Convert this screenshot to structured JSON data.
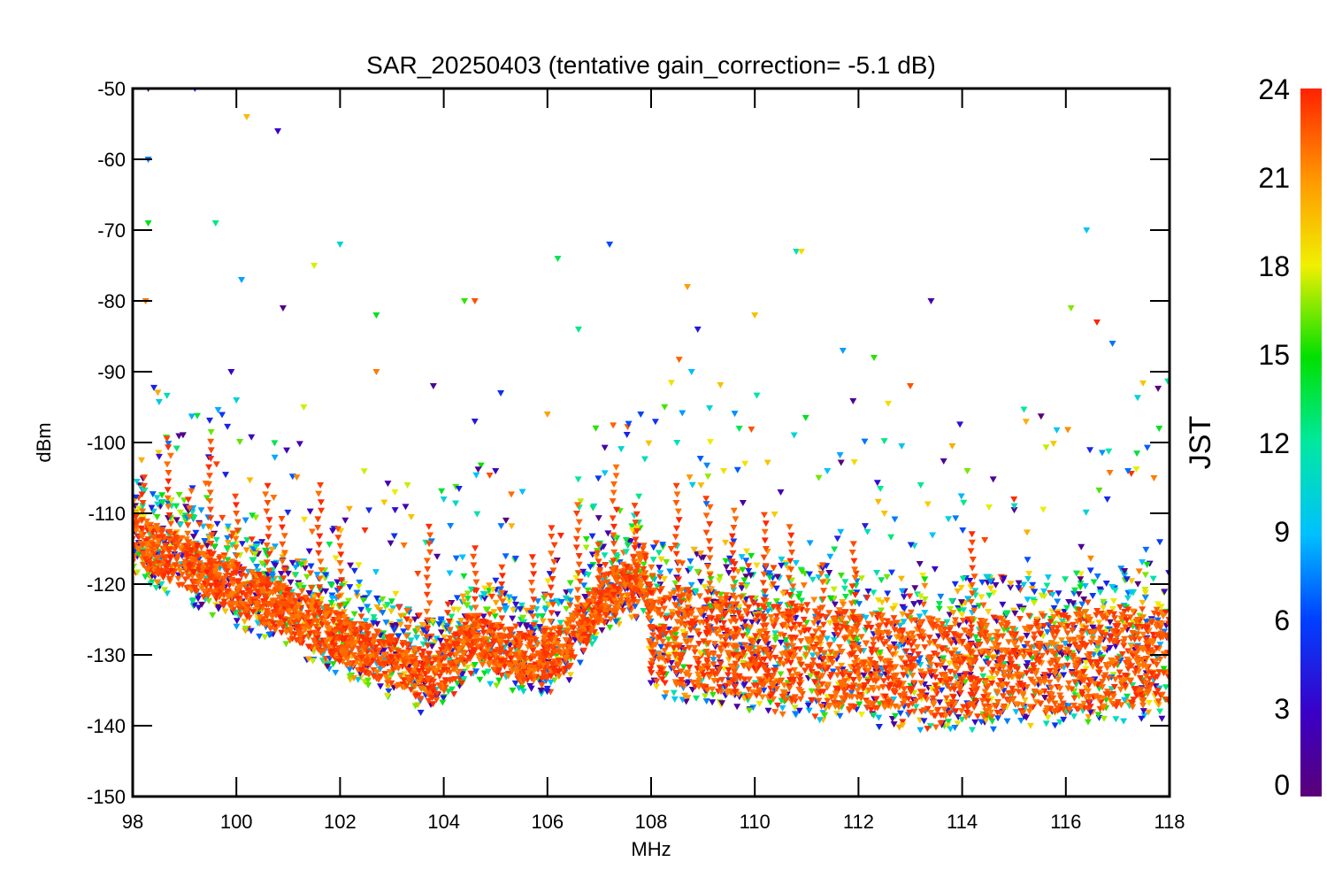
{
  "chart_data": {
    "type": "scatter",
    "title": "SAR_20250403 (tentative gain_correction= -5.1 dB)",
    "xlabel": "MHz",
    "ylabel": "dBm",
    "xlim": [
      98,
      118
    ],
    "ylim": [
      -150,
      -50
    ],
    "xticks": [
      "98",
      "100",
      "102",
      "104",
      "106",
      "108",
      "110",
      "112",
      "114",
      "116",
      "118"
    ],
    "yticks": [
      "-50",
      "-60",
      "-70",
      "-80",
      "-90",
      "-100",
      "-110",
      "-120",
      "-130",
      "-140",
      "-150"
    ],
    "colorbar": {
      "label": "JST",
      "range": [
        0,
        24
      ],
      "ticks": [
        "0",
        "3",
        "6",
        "9",
        "12",
        "15",
        "18",
        "21",
        "24"
      ],
      "colormap": "rainbow (purple → blue → cyan → green → yellow → orange → red)"
    },
    "marker": "small triangle",
    "dominant_color": "#ff3300",
    "noise_floor": {
      "x": [
        98,
        100,
        102,
        103.8,
        104.5,
        105.5,
        106.3,
        107,
        107.9,
        108,
        110,
        112,
        114,
        116,
        118
      ],
      "y": [
        -113,
        -120,
        -127,
        -133,
        -127,
        -130,
        -129,
        -122,
        -118,
        -130,
        -132,
        -134,
        -135,
        -134,
        -133
      ]
    },
    "series": [
      {
        "values": [
          [
            98.3,
            -50
          ],
          [
            98.3,
            -60
          ],
          [
            98.3,
            -69
          ],
          [
            98.25,
            -80
          ],
          [
            99.2,
            -50
          ],
          [
            99.6,
            -69
          ],
          [
            100.2,
            -54
          ],
          [
            100.8,
            -56
          ],
          [
            102.0,
            -72
          ],
          [
            101.5,
            -75
          ],
          [
            100.9,
            -81
          ],
          [
            100.1,
            -77
          ],
          [
            104.4,
            -80
          ],
          [
            104.6,
            -80
          ],
          [
            107.2,
            -72
          ],
          [
            106.2,
            -74
          ],
          [
            108.7,
            -78
          ],
          [
            108.9,
            -84
          ],
          [
            110.8,
            -73
          ],
          [
            110.9,
            -73
          ],
          [
            113.4,
            -80
          ],
          [
            116.4,
            -70
          ],
          [
            116.1,
            -81
          ],
          [
            116.6,
            -83
          ],
          [
            116.9,
            -86
          ],
          [
            102.7,
            -82
          ],
          [
            102.7,
            -90
          ],
          [
            105.1,
            -93
          ],
          [
            106.6,
            -84
          ],
          [
            110.0,
            -82
          ],
          [
            99.9,
            -90
          ],
          [
            100.0,
            -94
          ],
          [
            101.3,
            -95
          ],
          [
            103.8,
            -92
          ],
          [
            111.7,
            -87
          ],
          [
            112.3,
            -88
          ],
          [
            113.0,
            -92
          ],
          [
            107.8,
            -96
          ],
          [
            109.7,
            -98
          ],
          [
            106.0,
            -96
          ],
          [
            104.6,
            -97
          ],
          [
            108.5,
            -100
          ],
          [
            109.4,
            -104
          ],
          [
            110.5,
            -107
          ],
          [
            111.4,
            -104
          ],
          [
            114.1,
            -104
          ],
          [
            115.0,
            -108
          ],
          [
            117.2,
            -104
          ],
          [
            117.8,
            -98
          ],
          [
            117.7,
            -105
          ],
          [
            116.8,
            -108
          ],
          [
            113.2,
            -106
          ],
          [
            112.5,
            -110
          ],
          [
            105.0,
            -104
          ],
          [
            104.0,
            -108
          ],
          [
            103.3,
            -106
          ]
        ]
      }
    ]
  }
}
